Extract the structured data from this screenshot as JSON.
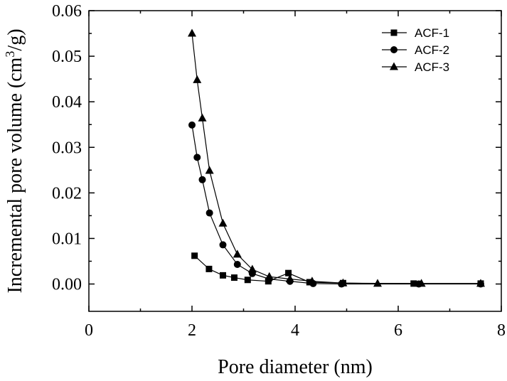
{
  "chart_data": {
    "type": "line",
    "title": "",
    "xlabel": "Pore diameter (nm)",
    "ylabel_parts": [
      "Incremental pore volume (cm",
      "3",
      "/g)"
    ],
    "xlim": [
      0,
      8
    ],
    "ylim": [
      -0.006,
      0.06
    ],
    "x_ticks": [
      {
        "value": 0,
        "label": "0"
      },
      {
        "value": 2,
        "label": "2"
      },
      {
        "value": 4,
        "label": "4"
      },
      {
        "value": 6,
        "label": "6"
      },
      {
        "value": 8,
        "label": "8"
      }
    ],
    "y_ticks": [
      {
        "value": 0.0,
        "label": "0.00"
      },
      {
        "value": 0.01,
        "label": "0.01"
      },
      {
        "value": 0.02,
        "label": "0.02"
      },
      {
        "value": 0.03,
        "label": "0.03"
      },
      {
        "value": 0.04,
        "label": "0.04"
      },
      {
        "value": 0.05,
        "label": "0.05"
      },
      {
        "value": 0.06,
        "label": "0.06"
      }
    ],
    "grid": false,
    "legend_position": "top-right",
    "series": [
      {
        "name": "ACF-1",
        "marker": "square",
        "points": [
          [
            2.05,
            0.0062
          ],
          [
            2.33,
            0.0033
          ],
          [
            2.6,
            0.0019
          ],
          [
            2.82,
            0.0014
          ],
          [
            3.08,
            0.0009
          ],
          [
            3.48,
            0.0006
          ],
          [
            3.87,
            0.0024
          ],
          [
            4.28,
            0.0004
          ],
          [
            4.93,
            0.0002
          ],
          [
            6.3,
            0.0001
          ],
          [
            7.6,
            0.0001
          ]
        ]
      },
      {
        "name": "ACF-2",
        "marker": "circle",
        "points": [
          [
            2.0,
            0.0349
          ],
          [
            2.1,
            0.0278
          ],
          [
            2.2,
            0.0229
          ],
          [
            2.34,
            0.0156
          ],
          [
            2.6,
            0.0086
          ],
          [
            2.88,
            0.0043
          ],
          [
            3.17,
            0.0023
          ],
          [
            3.5,
            0.0011
          ],
          [
            3.9,
            0.0006
          ],
          [
            4.35,
            0.0001
          ],
          [
            4.9,
            0.0
          ],
          [
            6.4,
            0.0
          ],
          [
            7.6,
            0.0
          ]
        ]
      },
      {
        "name": "ACF-3",
        "marker": "triangle",
        "points": [
          [
            2.0,
            0.055
          ],
          [
            2.1,
            0.0448
          ],
          [
            2.2,
            0.0364
          ],
          [
            2.34,
            0.0249
          ],
          [
            2.6,
            0.0133
          ],
          [
            2.88,
            0.0065
          ],
          [
            3.17,
            0.0032
          ],
          [
            3.5,
            0.0016
          ],
          [
            3.9,
            0.0011
          ],
          [
            4.33,
            0.0006
          ],
          [
            4.93,
            0.0002
          ],
          [
            5.6,
            0.0001
          ],
          [
            6.45,
            0.0001
          ],
          [
            7.6,
            0.0001
          ]
        ]
      }
    ]
  }
}
